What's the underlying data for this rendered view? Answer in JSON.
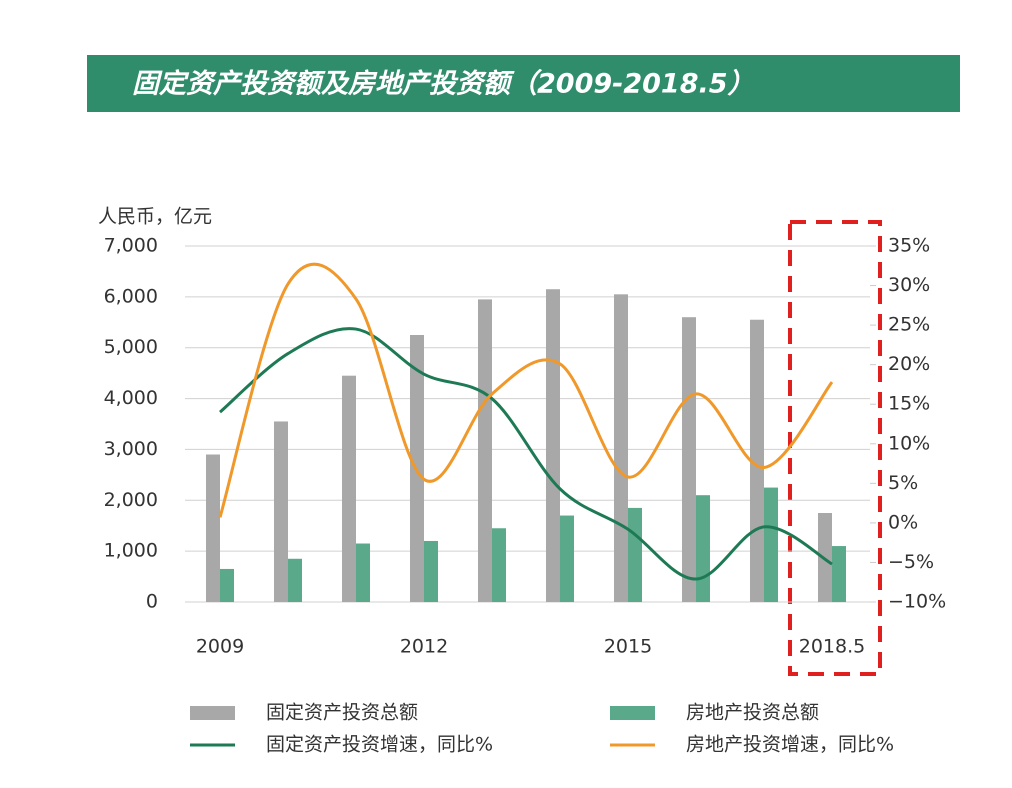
{
  "chart_data": {
    "type": "bar",
    "title": "固定资产投资额及房地产投资额（2009-2018.5）",
    "y_axis_label": "人民币，亿元",
    "categories": [
      "2009",
      null,
      null,
      "2012",
      null,
      null,
      "2015",
      null,
      null,
      "2018.5"
    ],
    "ylim": [
      0,
      7000
    ],
    "yticks": [
      0,
      {
        "value": 1000,
        "label": "1,000"
      },
      {
        "value": 2000,
        "label": "2,000"
      },
      {
        "value": 3000,
        "label": "3,000"
      },
      {
        "value": 4000,
        "label": "4,000"
      },
      {
        "value": 5000,
        "label": "5,000"
      },
      {
        "value": 6000,
        "label": "6,000"
      },
      {
        "value": 7000,
        "label": "7,000"
      }
    ],
    "y2lim": [
      -10,
      35
    ],
    "y2ticks": [
      {
        "value": -10,
        "label": "−10%"
      },
      {
        "value": -5,
        "label": "−5%"
      },
      {
        "value": 0,
        "label": "0%"
      },
      {
        "value": 5,
        "label": "5%"
      },
      {
        "value": 10,
        "label": "10%"
      },
      {
        "value": 15,
        "label": "15%"
      },
      {
        "value": 20,
        "label": "20%"
      },
      {
        "value": 25,
        "label": "25%"
      },
      {
        "value": 30,
        "label": "30%"
      },
      {
        "value": 35,
        "label": "35%"
      }
    ],
    "grid": true,
    "series": [
      {
        "name": "固定资产投资总额",
        "type": "bar",
        "color": "#a8a8a8",
        "values": [
          2900,
          3550,
          4450,
          5250,
          5950,
          6150,
          6050,
          5600,
          5550,
          1750
        ]
      },
      {
        "name": "房地产投资总额",
        "type": "bar",
        "color": "#5aa98a",
        "values": [
          650,
          850,
          1150,
          1200,
          1450,
          1700,
          1850,
          2100,
          2250,
          1100
        ]
      },
      {
        "name": "固定资产投资增速，同比%",
        "type": "line",
        "axis": "y2",
        "color": "#1e7a55",
        "values": [
          14,
          21.4,
          24.5,
          18.8,
          15.7,
          4.3,
          -0.8,
          -7.1,
          -0.5,
          -5.2
        ]
      },
      {
        "name": "房地产投资增速，同比%",
        "type": "line",
        "axis": "y2",
        "color": "#f0982a",
        "values": [
          0.7,
          30.2,
          28.3,
          5.5,
          16.3,
          20.1,
          5.8,
          16.3,
          7,
          17.8
        ]
      }
    ]
  }
}
